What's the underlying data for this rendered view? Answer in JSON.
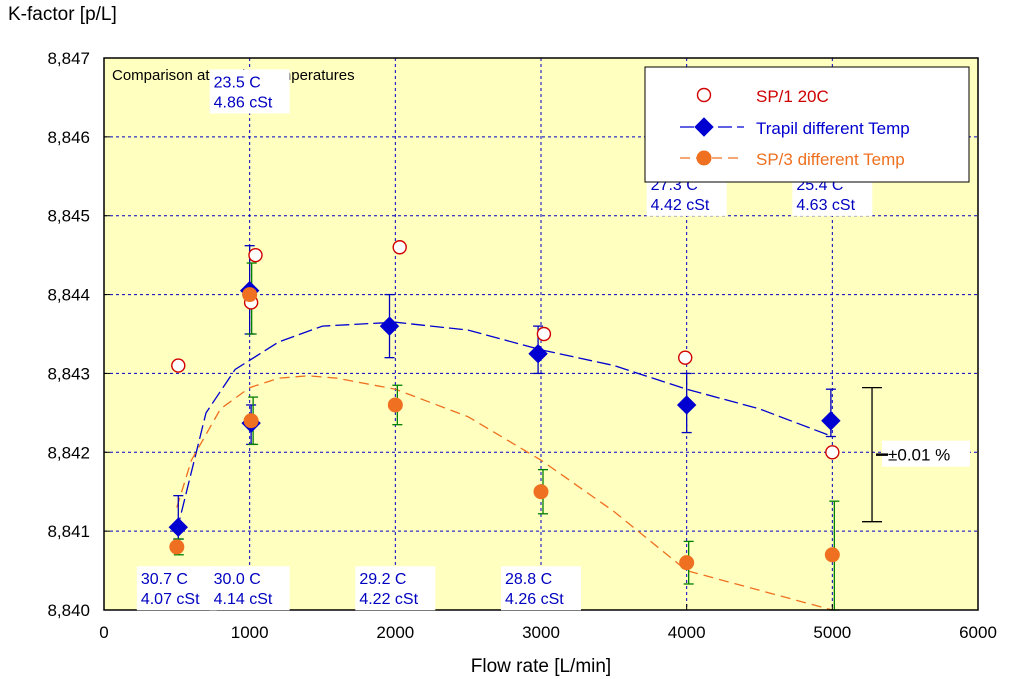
{
  "chart_data": {
    "type": "scatter",
    "title": "Comparison at varying temperatures",
    "ylabel": "K-factor [p/L]",
    "xlabel": "Flow rate [L/min]",
    "xlim": [
      0,
      6000
    ],
    "ylim": [
      8.84,
      8.847
    ],
    "xticks": [
      0,
      1000,
      2000,
      3000,
      4000,
      5000,
      6000
    ],
    "xtick_labels": [
      "0",
      "1000",
      "2000",
      "3000",
      "4000",
      "5000",
      "6000"
    ],
    "yticks": [
      8.84,
      8.841,
      8.842,
      8.843,
      8.844,
      8.845,
      8.846,
      8.847
    ],
    "ytick_labels": [
      "8,840",
      "8,841",
      "8,842",
      "8,843",
      "8,844",
      "8,845",
      "8,846",
      "8,847"
    ],
    "grid": true,
    "plot_background": "#ffffc0",
    "legend_position": "top-right",
    "series": [
      {
        "name": "SP/1 20C",
        "marker": "open-circle",
        "color": "#d00000",
        "x": [
          510,
          1010,
          1040,
          2030,
          3020,
          3990,
          5000
        ],
        "y": [
          8.8431,
          8.8439,
          8.8445,
          8.8446,
          8.8435,
          8.8432,
          8.842
        ]
      },
      {
        "name": "Trapil different Temp",
        "marker": "diamond",
        "color": "#0000d0",
        "x": [
          510,
          1000,
          1010,
          1960,
          2980,
          4000,
          4990
        ],
        "y": [
          8.84105,
          8.84405,
          8.84237,
          8.8436,
          8.84325,
          8.8426,
          8.8424
        ],
        "err_low": [
          8.8409,
          8.8435,
          8.8421,
          8.8432,
          8.843,
          8.84225,
          8.8422
        ],
        "err_high": [
          8.84145,
          8.84462,
          8.8426,
          8.844,
          8.8436,
          8.843,
          8.8428
        ],
        "fit_x": [
          500,
          700,
          900,
          1200,
          1500,
          2000,
          2500,
          3000,
          3500,
          4000,
          4500,
          5000
        ],
        "fit_y": [
          8.841,
          8.8425,
          8.84305,
          8.8434,
          8.8436,
          8.84365,
          8.84355,
          8.8433,
          8.8431,
          8.8428,
          8.84255,
          8.8422
        ]
      },
      {
        "name": "SP/3 different Temp",
        "marker": "filled-circle",
        "color": "#ee7020",
        "x": [
          500,
          1000,
          1010,
          2000,
          3000,
          4000,
          5000
        ],
        "y": [
          8.8408,
          8.844,
          8.8424,
          8.8426,
          8.8415,
          8.8406,
          8.8407
        ],
        "err_low": [
          8.8407,
          8.8435,
          8.8421,
          8.84235,
          8.84122,
          8.84033,
          8.84
        ],
        "err_high": [
          8.8409,
          8.8444,
          8.8427,
          8.84285,
          8.84178,
          8.84087,
          8.84138
        ],
        "fit_x": [
          500,
          600,
          800,
          1000,
          1200,
          1400,
          1600,
          2000,
          2500,
          3000,
          3500,
          4000,
          4500,
          5000
        ],
        "fit_y": [
          8.8413,
          8.8419,
          8.84255,
          8.84282,
          8.84294,
          8.84297,
          8.84294,
          8.8428,
          8.84245,
          8.8419,
          8.84125,
          8.8405,
          8.84025,
          8.84
        ]
      }
    ],
    "annotations": [
      {
        "line1": "23.5 C",
        "line2": "4.86 cSt",
        "x": 1000,
        "y": 8.8465
      },
      {
        "line1": "27.3 C",
        "line2": "4.42 cSt",
        "x": 4000,
        "y": 8.8452
      },
      {
        "line1": "25.4 C",
        "line2": "4.63 cSt",
        "x": 5000,
        "y": 8.8452
      },
      {
        "line1": "30.7 C",
        "line2": "4.07 cSt",
        "x": 500,
        "y": 8.8402
      },
      {
        "line1": "30.0 C",
        "line2": "4.14 cSt",
        "x": 1000,
        "y": 8.8402
      },
      {
        "line1": "29.2 C",
        "line2": "4.22 cSt",
        "x": 2000,
        "y": 8.8402
      },
      {
        "line1": "28.8 C",
        "line2": "4.26 cSt",
        "x": 3000,
        "y": 8.8402
      }
    ],
    "reference_bar": {
      "label": "±0.01 %",
      "x": 5300,
      "y_low": 8.84112,
      "y_high": 8.84282
    }
  }
}
